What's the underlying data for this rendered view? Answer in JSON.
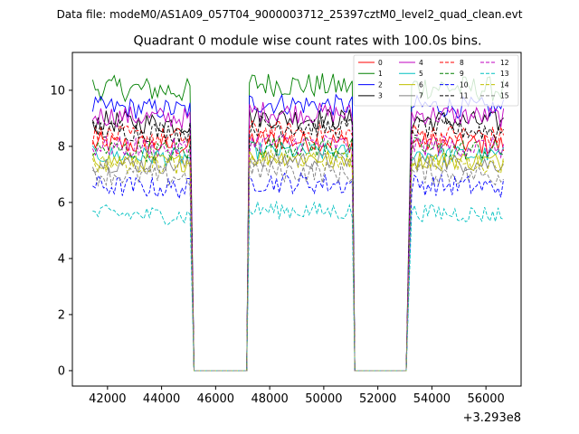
{
  "chart_data": {
    "type": "line",
    "suptitle": "Data file: modeM0/AS1A09_057T04_9000003712_25397cztM0_level2_quad_clean.evt",
    "title": "Quadrant 0 module wise count rates with 100.0s bins.",
    "xlabel": "",
    "ylabel": "",
    "x_offset_label": "+3.293e8",
    "xlim": [
      40700,
      57300
    ],
    "ylim": [
      -0.55,
      11.35
    ],
    "x_ticks": [
      42000,
      44000,
      46000,
      48000,
      50000,
      52000,
      54000,
      56000
    ],
    "x_tick_labels": [
      "42000",
      "44000",
      "46000",
      "48000",
      "50000",
      "52000",
      "54000",
      "56000"
    ],
    "y_ticks": [
      0,
      2,
      4,
      6,
      8,
      10
    ],
    "y_tick_labels": [
      "0",
      "2",
      "4",
      "6",
      "8",
      "10"
    ],
    "segments": [
      [
        41450,
        45050
      ],
      [
        47250,
        51050
      ],
      [
        53250,
        56650
      ]
    ],
    "zero_interval_x": [
      45200,
      47150,
      51150,
      53050
    ],
    "bin_seconds": 100,
    "legend_position": "top-right",
    "series": [
      {
        "name": "0",
        "color": "#ff0000",
        "dash": "solid",
        "base": 8.1,
        "amp": 0.3
      },
      {
        "name": "1",
        "color": "#008000",
        "dash": "solid",
        "base": 10.1,
        "amp": 0.35
      },
      {
        "name": "2",
        "color": "#0000ff",
        "dash": "solid",
        "base": 9.4,
        "amp": 0.3
      },
      {
        "name": "3",
        "color": "#000000",
        "dash": "solid",
        "base": 8.9,
        "amp": 0.3
      },
      {
        "name": "4",
        "color": "#c000c0",
        "dash": "solid",
        "base": 9.1,
        "amp": 0.3
      },
      {
        "name": "5",
        "color": "#00c0c0",
        "dash": "solid",
        "base": 7.7,
        "amp": 0.25
      },
      {
        "name": "6",
        "color": "#c0c000",
        "dash": "solid",
        "base": 7.5,
        "amp": 0.25
      },
      {
        "name": "7",
        "color": "#808080",
        "dash": "solid",
        "base": 7.4,
        "amp": 0.25
      },
      {
        "name": "8",
        "color": "#ff0000",
        "dash": "dashed",
        "base": 8.4,
        "amp": 0.3
      },
      {
        "name": "9",
        "color": "#008000",
        "dash": "dashed",
        "base": 7.9,
        "amp": 0.3
      },
      {
        "name": "10",
        "color": "#0000ff",
        "dash": "dashed",
        "base": 6.6,
        "amp": 0.3
      },
      {
        "name": "11",
        "color": "#000000",
        "dash": "dashed",
        "base": 8.6,
        "amp": 0.3
      },
      {
        "name": "12",
        "color": "#c000c0",
        "dash": "dashed",
        "base": 8.0,
        "amp": 0.3
      },
      {
        "name": "13",
        "color": "#00c0c0",
        "dash": "dashed",
        "base": 5.6,
        "amp": 0.25
      },
      {
        "name": "14",
        "color": "#c0c000",
        "dash": "dashed",
        "base": 7.4,
        "amp": 0.25
      },
      {
        "name": "15",
        "color": "#808080",
        "dash": "dashed",
        "base": 7.0,
        "amp": 0.3
      }
    ]
  }
}
